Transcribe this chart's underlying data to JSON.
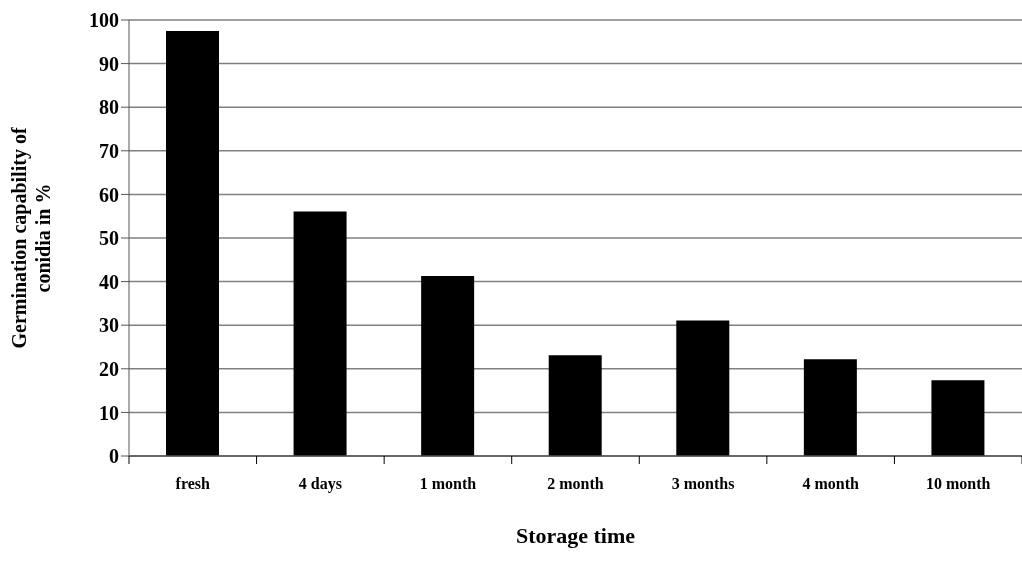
{
  "chart_data": {
    "type": "bar",
    "xlabel": "Storage time",
    "ylabel": "Germination capability of\nconidia in %",
    "categories": [
      "fresh",
      "4 days",
      "1 month",
      "2 month",
      "3 months",
      "4 month",
      "10 month"
    ],
    "values": [
      97.5,
      56.1,
      41.3,
      23.1,
      31.1,
      22.2,
      17.4
    ],
    "color": "#000000",
    "ylim": [
      0,
      100
    ],
    "yticks": [
      0,
      10,
      20,
      30,
      40,
      50,
      60,
      70,
      80,
      90,
      100
    ],
    "grid": "y"
  }
}
